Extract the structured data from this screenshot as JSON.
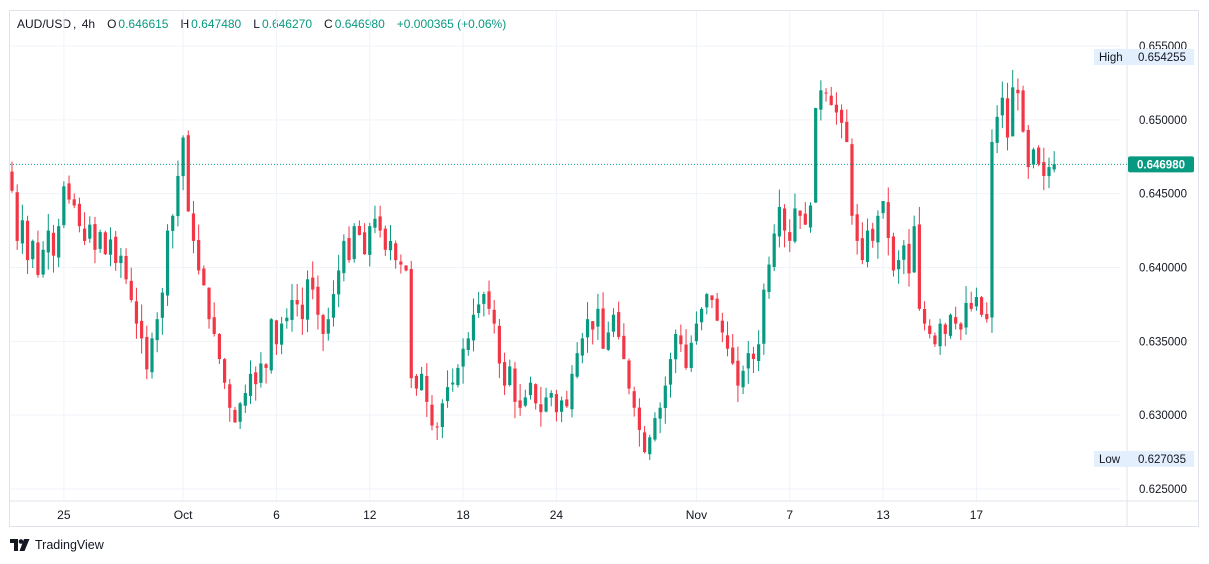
{
  "header": {
    "symbol": "AUD/USD",
    "interval": "4h",
    "open_label": "O",
    "open": "0.646615",
    "high_label": "H",
    "high": "0.647480",
    "low_label": "L",
    "low": "0.646270",
    "close_label": "C",
    "close": "0.646980",
    "change": "+0.000365 (+0.06%)"
  },
  "brand": {
    "name": "TradingView"
  },
  "colors": {
    "up": "#089981",
    "down": "#f23645",
    "grid": "#f0f3fa",
    "axis_text": "#131722",
    "badge_bg": "#e3effd"
  },
  "chart_data": {
    "type": "candlestick",
    "symbol": "AUD/USD",
    "timeframe": "4h",
    "y_ticks": [
      "0.625000",
      "0.630000",
      "0.635000",
      "0.640000",
      "0.645000",
      "0.650000",
      "0.655000"
    ],
    "ylim": [
      0.6245,
      0.6555
    ],
    "x_ticks": [
      {
        "label": "25",
        "bar": 10
      },
      {
        "label": "Oct",
        "bar": 33
      },
      {
        "label": "6",
        "bar": 51
      },
      {
        "label": "12",
        "bar": 69
      },
      {
        "label": "18",
        "bar": 87
      },
      {
        "label": "24",
        "bar": 105
      },
      {
        "label": "Nov",
        "bar": 132
      },
      {
        "label": "7",
        "bar": 150
      },
      {
        "label": "13",
        "bar": 168
      },
      {
        "label": "17",
        "bar": 186
      }
    ],
    "current_price": "0.646980",
    "high": {
      "label": "High",
      "value": "0.654255"
    },
    "low": {
      "label": "Low",
      "value": "0.627035"
    },
    "closes": [
      0.6452,
      0.6418,
      0.6432,
      0.6405,
      0.6418,
      0.6395,
      0.6412,
      0.6425,
      0.6408,
      0.6428,
      0.6455,
      0.6446,
      0.6442,
      0.6428,
      0.6418,
      0.6429,
      0.6412,
      0.6424,
      0.6409,
      0.6419,
      0.6403,
      0.6408,
      0.6392,
      0.6378,
      0.6362,
      0.6352,
      0.6331,
      0.6352,
      0.6365,
      0.6383,
      0.6425,
      0.6435,
      0.6462,
      0.6488,
      0.6438,
      0.6418,
      0.6398,
      0.6388,
      0.6365,
      0.6355,
      0.6338,
      0.6322,
      0.6305,
      0.6295,
      0.6308,
      0.6315,
      0.6328,
      0.6321,
      0.6335,
      0.6332,
      0.6365,
      0.6348,
      0.6362,
      0.6366,
      0.6378,
      0.6375,
      0.6365,
      0.6392,
      0.6385,
      0.6368,
      0.6355,
      0.6365,
      0.6382,
      0.6398,
      0.6418,
      0.6405,
      0.6428,
      0.6422,
      0.6409,
      0.6428,
      0.6433,
      0.6425,
      0.6412,
      0.6418,
      0.6405,
      0.6402,
      0.6398,
      0.6325,
      0.6318,
      0.6328,
      0.6309,
      0.6293,
      0.6292,
      0.6308,
      0.6319,
      0.6322,
      0.6332,
      0.6345,
      0.6352,
      0.6368,
      0.6375,
      0.6382,
      0.6372,
      0.6362,
      0.6335,
      0.632,
      0.6333,
      0.6309,
      0.6305,
      0.6312,
      0.6322,
      0.6308,
      0.6302,
      0.6312,
      0.6315,
      0.6302,
      0.631,
      0.6306,
      0.6328,
      0.6342,
      0.6352,
      0.6365,
      0.6358,
      0.6372,
      0.6345,
      0.6356,
      0.6368,
      0.6353,
      0.6338,
      0.6318,
      0.6305,
      0.629,
      0.6275,
      0.6285,
      0.6298,
      0.6305,
      0.632,
      0.6338,
      0.6355,
      0.6348,
      0.6332,
      0.6349,
      0.6362,
      0.6372,
      0.6382,
      0.6378,
      0.6364,
      0.6356,
      0.6345,
      0.6335,
      0.632,
      0.633,
      0.6342,
      0.6338,
      0.6348,
      0.6385,
      0.6402,
      0.6423,
      0.6441,
      0.6425,
      0.6418,
      0.644,
      0.6435,
      0.6429,
      0.6442,
      0.6508,
      0.652,
      0.6518,
      0.651,
      0.6505,
      0.6498,
      0.6485,
      0.6435,
      0.6418,
      0.6405,
      0.6425,
      0.6418,
      0.6435,
      0.6445,
      0.642,
      0.6398,
      0.6405,
      0.6415,
      0.6396,
      0.6428,
      0.6372,
      0.6362,
      0.6355,
      0.6348,
      0.6362,
      0.6355,
      0.6368,
      0.6362,
      0.6358,
      0.6376,
      0.6372,
      0.638,
      0.6368,
      0.6365,
      0.6485,
      0.6502,
      0.6515,
      0.6488,
      0.6522,
      0.6518,
      0.6492,
      0.6468,
      0.648,
      0.647,
      0.6462,
      0.6468,
      0.647
    ]
  }
}
